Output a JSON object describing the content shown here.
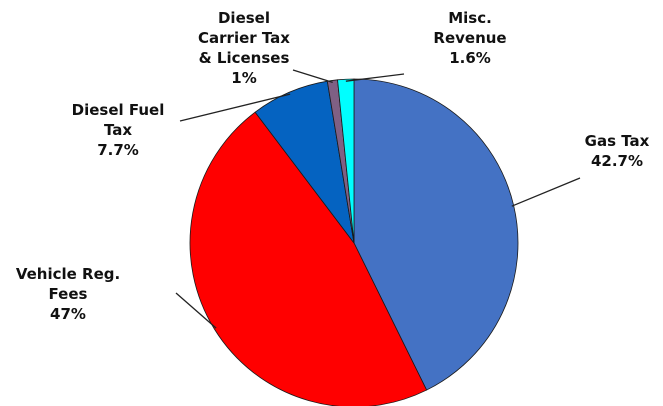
{
  "chart_data": {
    "type": "pie",
    "slices": [
      {
        "label_lines": [
          "Gas Tax",
          "42.7%"
        ],
        "value": 42.7,
        "color": "#4472C4"
      },
      {
        "label_lines": [
          "Vehicle Reg.",
          "Fees",
          "47%"
        ],
        "value": 47,
        "color": "#FF0000"
      },
      {
        "label_lines": [
          "Diesel Fuel",
          "Tax",
          "7.7%"
        ],
        "value": 7.7,
        "color": "#0563C1"
      },
      {
        "label_lines": [
          "Diesel",
          "Carrier Tax",
          "& Licenses",
          "1%"
        ],
        "value": 1,
        "color": "#7F6084"
      },
      {
        "label_lines": [
          "Misc.",
          "Revenue",
          "1.6%"
        ],
        "value": 1.6,
        "color": "#00FFFF"
      }
    ],
    "start_angle_deg": 0,
    "direction": "clockwise",
    "legend": "none"
  }
}
